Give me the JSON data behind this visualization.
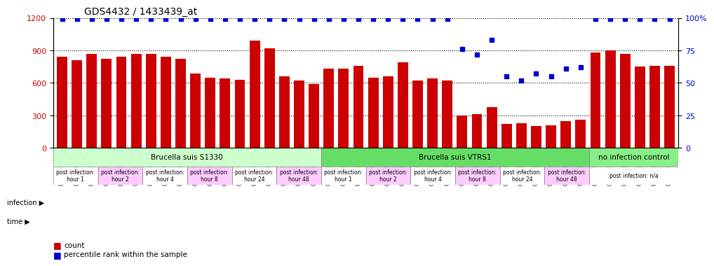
{
  "title": "GDS4432 / 1433439_at",
  "categories": [
    "GSM528195",
    "GSM528196",
    "GSM528197",
    "GSM528198",
    "GSM528199",
    "GSM528200",
    "GSM528203",
    "GSM528204",
    "GSM528205",
    "GSM528206",
    "GSM528207",
    "GSM528208",
    "GSM528209",
    "GSM528210",
    "GSM528211",
    "GSM528212",
    "GSM528213",
    "GSM528214",
    "GSM528218",
    "GSM528219",
    "GSM528220",
    "GSM528222",
    "GSM528223",
    "GSM528224",
    "GSM528225",
    "GSM528226",
    "GSM528227",
    "GSM528228",
    "GSM528229",
    "GSM528230",
    "GSM528232",
    "GSM528233",
    "GSM528234",
    "GSM528235",
    "GSM528236",
    "GSM528237",
    "GSM528192",
    "GSM528193",
    "GSM528194",
    "GSM528215",
    "GSM528216",
    "GSM528217"
  ],
  "bar_values": [
    840,
    810,
    870,
    820,
    840,
    870,
    870,
    840,
    820,
    690,
    650,
    640,
    630,
    990,
    920,
    660,
    620,
    590,
    730,
    730,
    760,
    650,
    660,
    790,
    620,
    640,
    620,
    300,
    310,
    380,
    220,
    230,
    200,
    210,
    250,
    260,
    880,
    900,
    870,
    750,
    760,
    760
  ],
  "percentile_values": [
    99,
    99,
    99,
    99,
    99,
    99,
    99,
    99,
    99,
    99,
    99,
    99,
    99,
    99,
    99,
    99,
    99,
    99,
    99,
    99,
    99,
    99,
    99,
    99,
    99,
    99,
    99,
    76,
    72,
    83,
    55,
    52,
    57,
    55,
    61,
    62,
    99,
    99,
    99,
    99,
    99,
    99
  ],
  "bar_color": "#cc0000",
  "dot_color": "#0000cc",
  "ylim_left": [
    0,
    1200
  ],
  "ylim_right": [
    0,
    100
  ],
  "yticks_left": [
    0,
    300,
    600,
    900,
    1200
  ],
  "yticks_right": [
    0,
    25,
    50,
    75,
    100
  ],
  "infection_groups": [
    {
      "label": "Brucella suis S1330",
      "start": 0,
      "end": 18,
      "color": "#ccffcc"
    },
    {
      "label": "Brucella suis VTRS1",
      "start": 18,
      "end": 36,
      "color": "#66dd66"
    },
    {
      "label": "no infection control",
      "start": 36,
      "end": 42,
      "color": "#88ee88"
    }
  ],
  "time_groups": [
    {
      "label": "post infection:\nhour 1",
      "start": 0,
      "end": 3,
      "color": "#ffffff"
    },
    {
      "label": "post infection:\nhour 2",
      "start": 3,
      "end": 6,
      "color": "#ffccff"
    },
    {
      "label": "post infection:\nhour 4",
      "start": 6,
      "end": 9,
      "color": "#ffffff"
    },
    {
      "label": "post infection:\nhour 8",
      "start": 9,
      "end": 12,
      "color": "#ffccff"
    },
    {
      "label": "post infection:\nhour 24",
      "start": 12,
      "end": 15,
      "color": "#ffffff"
    },
    {
      "label": "post infection:\nhour 48",
      "start": 15,
      "end": 18,
      "color": "#ffccff"
    },
    {
      "label": "post infection:\nhour 1",
      "start": 18,
      "end": 21,
      "color": "#ffffff"
    },
    {
      "label": "post infection:\nhour 2",
      "start": 21,
      "end": 24,
      "color": "#ffccff"
    },
    {
      "label": "post infection:\nhour 4",
      "start": 24,
      "end": 27,
      "color": "#ffffff"
    },
    {
      "label": "post infection:\nhour 8",
      "start": 27,
      "end": 30,
      "color": "#ffccff"
    },
    {
      "label": "post infection:\nhour 24",
      "start": 30,
      "end": 33,
      "color": "#ffffff"
    },
    {
      "label": "post infection:\nhour 48",
      "start": 33,
      "end": 36,
      "color": "#ffccff"
    },
    {
      "label": "post infection: n/a",
      "start": 36,
      "end": 42,
      "color": "#ffffff"
    }
  ],
  "legend_count_color": "#cc0000",
  "legend_pct_color": "#0000cc",
  "background_color": "#ffffff"
}
